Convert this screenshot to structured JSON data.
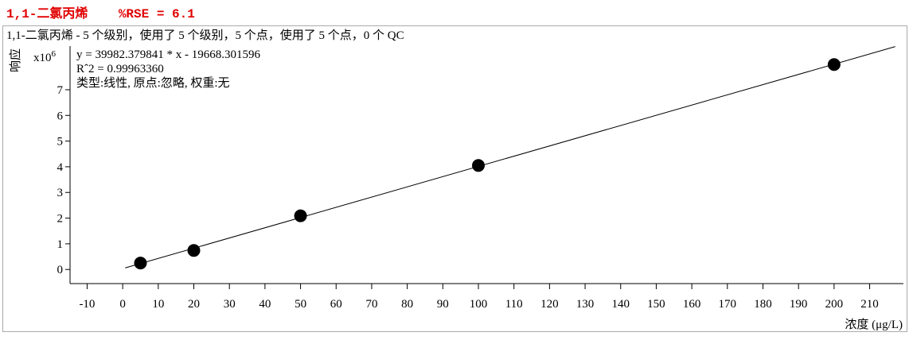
{
  "header": {
    "title": "1,1-二氯丙烯    %RSE = 6.1"
  },
  "chart_data": {
    "type": "scatter",
    "subtitle": "1,1-二氯丙烯 - 5 个级别，使用了 5 个级别，5 个点，使用了 5 个点，0 个 QC",
    "y_label": "响应",
    "y_multiplier": {
      "base": "x10",
      "exponent": "6"
    },
    "x_label": "浓度 (μg/L)",
    "annotations": [
      "y = 39982.379841 * x   - 19668.301596",
      "Rˆ2 = 0.99963360",
      "类型:线性, 原点:忽略, 权重:无"
    ],
    "x": [
      5,
      20,
      50,
      100,
      200
    ],
    "values": [
      0.25,
      0.74,
      2.09,
      4.05,
      7.98
    ],
    "color": "#000000",
    "fit_line": {
      "x": [
        0.7,
        217.2
      ],
      "values": [
        0.06,
        8.68
      ]
    },
    "xlim": [
      -14.8,
      219.5
    ],
    "ylim": [
      -0.55,
      8.7
    ],
    "xticks": [
      -10,
      0,
      10,
      20,
      30,
      40,
      50,
      60,
      70,
      80,
      90,
      100,
      110,
      120,
      130,
      140,
      150,
      160,
      170,
      180,
      190,
      200,
      210
    ],
    "yticks": [
      0,
      1,
      2,
      3,
      4,
      5,
      6,
      7
    ]
  }
}
